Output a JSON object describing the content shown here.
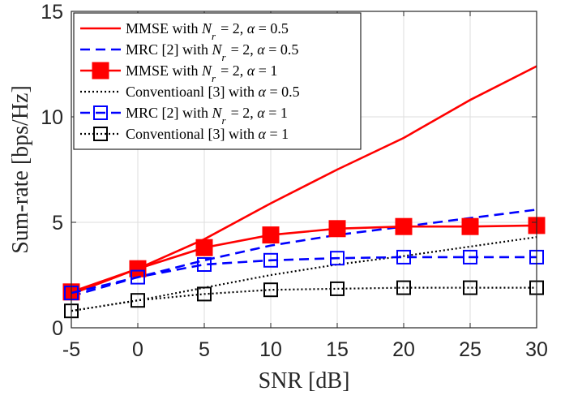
{
  "chart_data": {
    "type": "line",
    "xlabel": "SNR [dB]",
    "ylabel": "Sum-rate [bps/Hz]",
    "xlim": [
      -5,
      30
    ],
    "ylim": [
      0,
      15
    ],
    "xticks": [
      -5,
      0,
      5,
      10,
      15,
      20,
      25,
      30
    ],
    "yticks": [
      0,
      5,
      10,
      15
    ],
    "grid": true,
    "legend_position": "top-left",
    "x": [
      -5,
      0,
      5,
      10,
      15,
      20,
      25,
      30
    ],
    "series": [
      {
        "name": "MMSE with N_r = 2, α = 0.5",
        "legend_parts": [
          "MMSE with ",
          "N",
          "r",
          " = 2, ",
          "α",
          " = 0.5"
        ],
        "color": "#ff0000",
        "style": "solid",
        "marker": "none",
        "filled": false,
        "values": [
          1.6,
          2.8,
          4.2,
          5.9,
          7.5,
          9.0,
          10.8,
          12.4
        ]
      },
      {
        "name": "MRC [2] with N_r = 2, α = 0.5",
        "legend_parts": [
          "MRC [2] with ",
          "N",
          "r",
          " = 2, ",
          "α",
          " = 0.5"
        ],
        "color": "#0000ff",
        "style": "dashed",
        "marker": "none",
        "filled": false,
        "values": [
          1.5,
          2.4,
          3.2,
          3.9,
          4.4,
          4.8,
          5.2,
          5.6
        ]
      },
      {
        "name": "MMSE with N_r = 2, α = 1",
        "legend_parts": [
          "MMSE with ",
          "N",
          "r",
          " = 2, ",
          "α",
          " = 1"
        ],
        "color": "#ff0000",
        "style": "solid",
        "marker": "square",
        "filled": true,
        "values": [
          1.7,
          2.8,
          3.8,
          4.4,
          4.7,
          4.8,
          4.8,
          4.85
        ]
      },
      {
        "name": "Conventioanl [3] with α = 0.5",
        "legend_parts": [
          "Conventioanl [3] with ",
          "",
          "",
          "",
          "α",
          " = 0.5"
        ],
        "color": "#000000",
        "style": "dotted",
        "marker": "none",
        "filled": false,
        "values": [
          0.8,
          1.3,
          1.9,
          2.5,
          3.0,
          3.4,
          3.85,
          4.3
        ]
      },
      {
        "name": "MRC [2] with N_r = 2, α = 1",
        "legend_parts": [
          "MRC [2] with ",
          "N",
          "r",
          " = 2, ",
          "α",
          " = 1"
        ],
        "color": "#0000ff",
        "style": "dashed",
        "marker": "square",
        "filled": false,
        "values": [
          1.65,
          2.4,
          3.0,
          3.2,
          3.3,
          3.35,
          3.35,
          3.35
        ]
      },
      {
        "name": "Conventional [3] with α = 1",
        "legend_parts": [
          "Conventional [3] with ",
          "",
          "",
          "",
          "α",
          " = 1"
        ],
        "color": "#000000",
        "style": "dotted",
        "marker": "square",
        "filled": false,
        "values": [
          0.8,
          1.3,
          1.6,
          1.8,
          1.85,
          1.9,
          1.9,
          1.9
        ]
      }
    ]
  }
}
